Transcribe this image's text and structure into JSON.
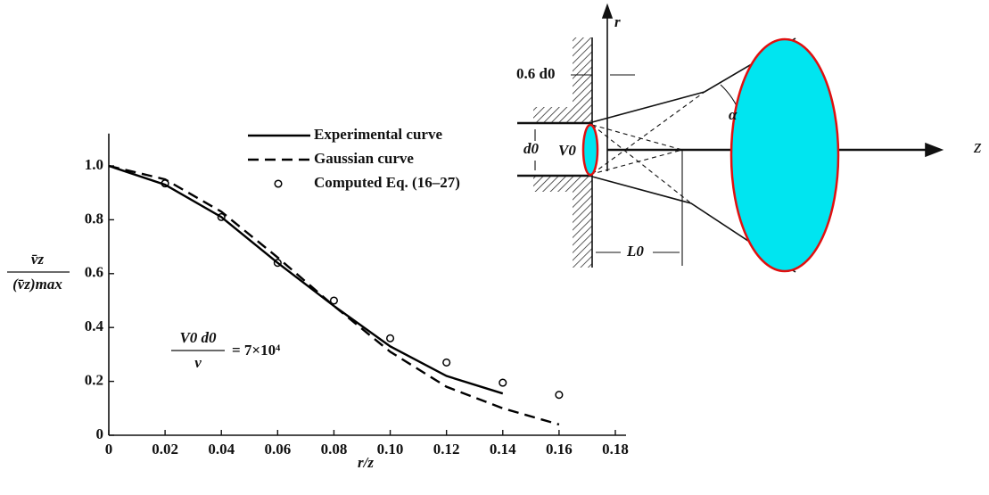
{
  "chart_data": {
    "type": "line",
    "xlabel": "r/z",
    "ylabel": {
      "numerator": "v̄z",
      "denominator": "(v̄z)max"
    },
    "annotation": {
      "numerator": "V0 d0",
      "denominator": "ν",
      "rhs": "= 7×10⁴"
    },
    "x": [
      0,
      0.02,
      0.04,
      0.06,
      0.08,
      0.1,
      0.12,
      0.14,
      0.16
    ],
    "series": [
      {
        "name": "Experimental curve",
        "style": "solid",
        "color": "#000000",
        "values": [
          1.0,
          0.93,
          0.81,
          0.64,
          0.48,
          0.33,
          0.22,
          0.155,
          null
        ]
      },
      {
        "name": "Gaussian curve",
        "style": "dashed",
        "color": "#000000",
        "values": [
          1.0,
          0.95,
          0.83,
          0.66,
          0.48,
          0.31,
          0.18,
          0.1,
          0.04
        ]
      },
      {
        "name": "Computed Eq. (16–27)",
        "style": "markers",
        "color": "#000000",
        "values": [
          null,
          0.935,
          0.81,
          0.64,
          0.5,
          0.36,
          0.27,
          0.195,
          0.15
        ]
      }
    ],
    "xlim": [
      0,
      0.18
    ],
    "xticks": [
      0,
      0.02,
      0.04,
      0.06,
      0.08,
      {
        "value": 0.1,
        "label": "0.10"
      },
      0.12,
      0.14,
      0.16,
      0.18
    ],
    "ylim": [
      0,
      1.12
    ],
    "yticks": [
      0,
      0.2,
      0.4,
      0.6,
      0.8,
      {
        "value": 1,
        "label": "1.0"
      }
    ],
    "grid": false
  },
  "diagram": {
    "r": "r",
    "z": "z",
    "offset": "0.6 d0",
    "d0": "d0",
    "V0": "V0",
    "L0": "L0",
    "alpha": "α"
  }
}
